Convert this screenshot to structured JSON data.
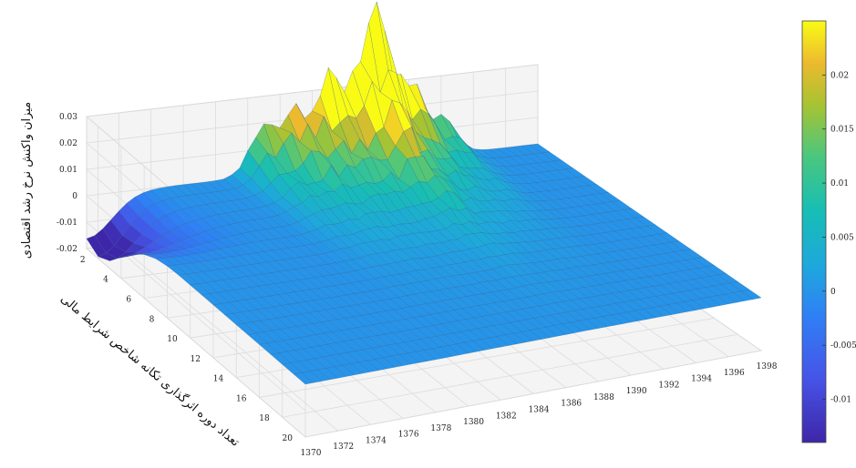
{
  "chart_data": {
    "type": "surface",
    "title": "",
    "zlabel": "میزان واکنش نرخ رشد اقتصادی",
    "ylabel": "تعداد دوره اثرگذاری تکانه شاخص شرایط مالی",
    "xlabel": "",
    "x": [
      1370,
      1372,
      1374,
      1376,
      1378,
      1380,
      1382,
      1384,
      1386,
      1388,
      1390,
      1392,
      1394,
      1396,
      1398
    ],
    "x_ticks": [
      "1370",
      "1372",
      "1374",
      "1376",
      "1378",
      "1380",
      "1382",
      "1384",
      "1386",
      "1388",
      "1390",
      "1392",
      "1394",
      "1396",
      "1398"
    ],
    "y_ticks": [
      "2",
      "4",
      "6",
      "8",
      "10",
      "12",
      "14",
      "16",
      "18",
      "20"
    ],
    "z_ticks": [
      "-0.02",
      "-0.01",
      "0",
      "0.01",
      "0.02",
      "0.03"
    ],
    "xlim": [
      1370,
      1398
    ],
    "ylim": [
      1,
      20
    ],
    "zlim": [
      -0.02,
      0.03
    ],
    "peaks": [
      {
        "x": 1381,
        "z": 0.016
      },
      {
        "x": 1383,
        "z": 0.022
      },
      {
        "x": 1385,
        "z": 0.026
      },
      {
        "x": 1387,
        "z": 0.025
      },
      {
        "x": 1388,
        "z": 0.033
      },
      {
        "x": 1390,
        "z": 0.022
      },
      {
        "x": 1392,
        "z": 0.012
      }
    ],
    "trough": {
      "x": 1370,
      "y": 2,
      "z": -0.019
    },
    "colorbar": {
      "ticks": [
        "0.02",
        "0.015",
        "0.01",
        "0.005",
        "0",
        "-0.005",
        "-0.01"
      ],
      "min": -0.014,
      "max": 0.025,
      "colormap": "parula"
    },
    "grid": true
  }
}
